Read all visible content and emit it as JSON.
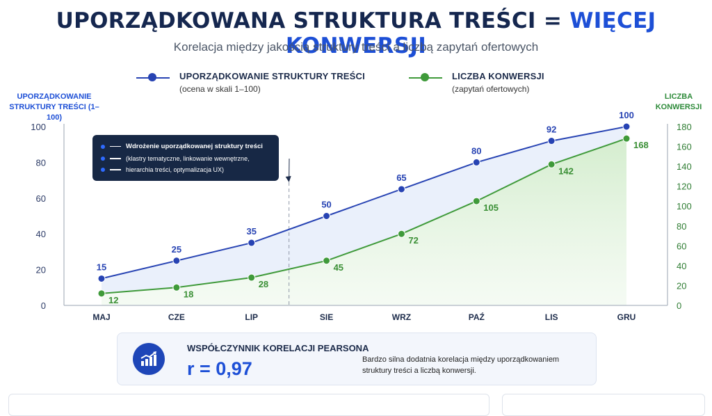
{
  "header": {
    "title_main": "UPORZĄDKOWANA STRUKTURA TREŚCI",
    "title_sep": "=",
    "title_accent": "WIĘCEJ KONWERSJI",
    "subtitle": "Korelacja między jakością struktury treści a liczbą zapytań ofertowych"
  },
  "legend": [
    {
      "label": "UPORZĄDKOWANIE STRUKTURY TREŚCI",
      "sub": "(ocena w skali 1–100)"
    },
    {
      "label": "LICZBA KONWERSJI",
      "sub": "(zapytań ofertowych)"
    }
  ],
  "tooltip": {
    "title": "Wdrożenie uporządkowanej struktury treści",
    "line1": "(klastry tematyczne, linkowanie wewnętrzne,",
    "line2": "hierarchia treści, optymalizacja UX)"
  },
  "stats": {
    "label": "WSPÓŁCZYNNIK KORELACJI PEARSONA",
    "value": "r = 0,97",
    "description": "Bardzo silna dodatnia korelacja między uporządkowaniem struktury treści a liczbą konwersji.",
    "icon": "chart-growth-icon"
  },
  "colors": {
    "blue": "#2743b3",
    "green": "#3f9a3a",
    "accent": "#1d4fd6",
    "dark": "#15274f"
  },
  "chart_data": {
    "type": "line",
    "categories": [
      "MAJ",
      "CZE",
      "LIP",
      "SIE",
      "WRZ",
      "PAŹ",
      "LIS",
      "GRU"
    ],
    "series": [
      {
        "name": "UPORZĄDKOWANIE STRUKTURY TREŚCI",
        "axis": "left",
        "values": [
          15,
          25,
          35,
          50,
          65,
          80,
          92,
          100
        ]
      },
      {
        "name": "LICZBA KONWERSJI",
        "axis": "right",
        "values": [
          12,
          18,
          28,
          45,
          72,
          105,
          142,
          168
        ]
      }
    ],
    "ylabel_left": "UPORZĄDKOWANIE STRUKTURY TREŚCI (1–100)",
    "ylabel_right": "LICZBA KONWERSJI",
    "ylim_left": [
      0,
      100
    ],
    "ylim_right": [
      0,
      180
    ],
    "yticks_left": [
      0,
      20,
      40,
      60,
      80,
      100
    ],
    "yticks_right": [
      0,
      20,
      40,
      60,
      80,
      100,
      120,
      140,
      160,
      180
    ],
    "marker_between": [
      "LIP",
      "SIE"
    ],
    "grid": false,
    "area_fill": true
  }
}
